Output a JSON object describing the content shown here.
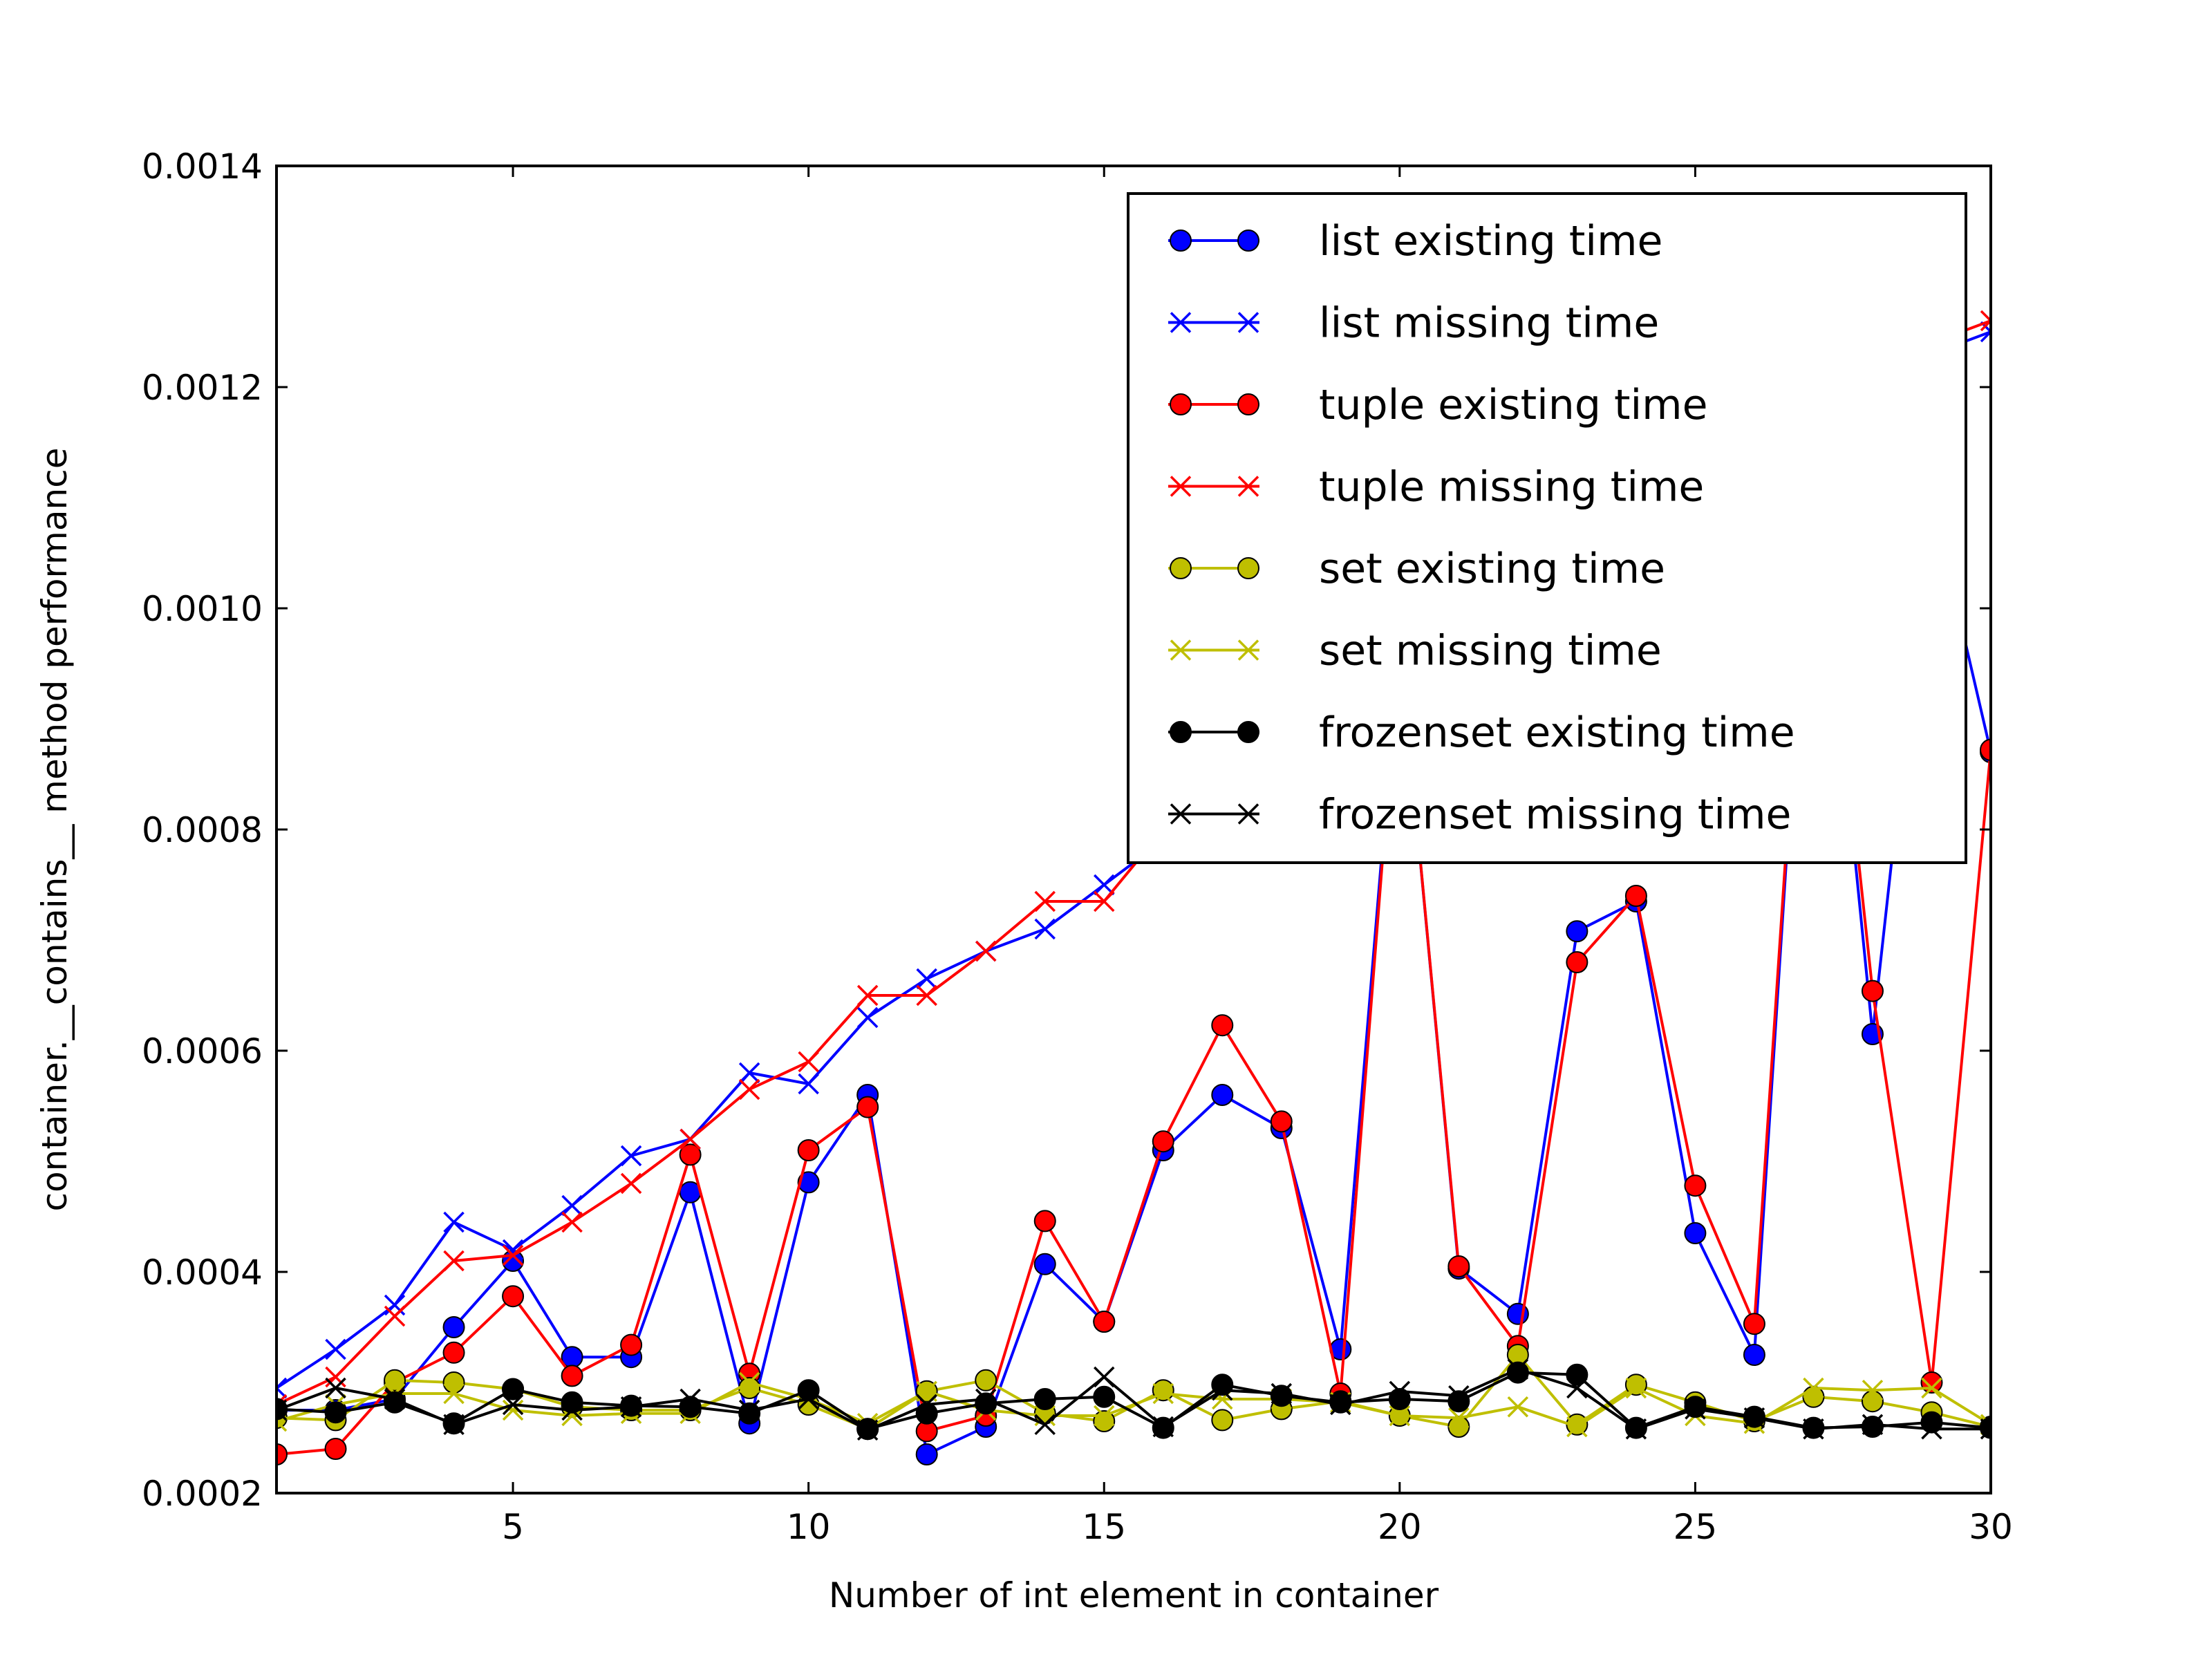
{
  "chart_data": {
    "type": "line",
    "xlabel": "Number of int element in container",
    "ylabel": "container.__contains__ method performance",
    "xlim": [
      1,
      30
    ],
    "ylim": [
      0.0002,
      0.0014
    ],
    "xticks": [
      5,
      10,
      15,
      20,
      25,
      30
    ],
    "xtick_labels": [
      "5",
      "10",
      "15",
      "20",
      "25",
      "30"
    ],
    "yticks": [
      0.0002,
      0.0004,
      0.0006,
      0.0008,
      0.001,
      0.0012,
      0.0014
    ],
    "ytick_labels": [
      "0.0002",
      "0.0004",
      "0.0006",
      "0.0008",
      "0.0010",
      "0.0012",
      "0.0014"
    ],
    "legend_position": "top-right",
    "grid": false,
    "x": [
      1,
      2,
      3,
      4,
      5,
      6,
      7,
      8,
      9,
      10,
      11,
      12,
      13,
      14,
      15,
      16,
      17,
      18,
      19,
      20,
      21,
      22,
      23,
      24,
      25,
      26,
      27,
      28,
      29,
      30
    ],
    "series": [
      {
        "name": "list existing time",
        "color": "#0000ff",
        "marker": "circle",
        "values": [
          0.000275,
          0.000275,
          0.000285,
          0.00035,
          0.00041,
          0.000323,
          0.000323,
          0.000472,
          0.000263,
          0.000481,
          0.00056,
          0.000235,
          0.00026,
          0.000407,
          0.000355,
          0.00051,
          0.00056,
          0.00053,
          0.00033,
          0.00097,
          0.000403,
          0.000362,
          0.000708,
          0.000735,
          0.000435,
          0.000325,
          0.00115,
          0.000615,
          0.0011,
          0.00087
        ]
      },
      {
        "name": "list missing time",
        "color": "#0000ff",
        "marker": "x",
        "values": [
          0.000295,
          0.00033,
          0.00037,
          0.000445,
          0.00042,
          0.00046,
          0.000505,
          0.00052,
          0.00058,
          0.00057,
          0.00063,
          0.000665,
          0.00069,
          0.00071,
          0.00075,
          0.00079,
          0.00086,
          0.00093,
          0.00098,
          0.00101,
          0.00104,
          0.00107,
          0.0011,
          0.00113,
          0.00116,
          0.00118,
          0.0012,
          0.00121,
          0.00123,
          0.00125
        ]
      },
      {
        "name": "tuple existing time",
        "color": "#ff0000",
        "marker": "circle",
        "values": [
          0.000235,
          0.00024,
          0.0003,
          0.000327,
          0.000378,
          0.000306,
          0.000334,
          0.000506,
          0.000308,
          0.00051,
          0.000549,
          0.000256,
          0.00027,
          0.000446,
          0.000355,
          0.000518,
          0.000623,
          0.000536,
          0.00029,
          0.00097,
          0.000405,
          0.000333,
          0.00068,
          0.00074,
          0.000478,
          0.000353,
          0.00115,
          0.000654,
          0.0003,
          0.000872
        ]
      },
      {
        "name": "tuple missing time",
        "color": "#ff0000",
        "marker": "x",
        "values": [
          0.00028,
          0.000305,
          0.00036,
          0.00041,
          0.000415,
          0.000445,
          0.00048,
          0.00052,
          0.000565,
          0.00059,
          0.00065,
          0.00065,
          0.00069,
          0.000735,
          0.000735,
          0.0008,
          0.00086,
          0.00092,
          0.00097,
          0.00101,
          0.00104,
          0.00107,
          0.00111,
          0.00113,
          0.00116,
          0.00118,
          0.0012,
          0.00122,
          0.00124,
          0.00126
        ]
      },
      {
        "name": "set existing time",
        "color": "#bfbf00",
        "marker": "circle",
        "values": [
          0.000268,
          0.000266,
          0.000302,
          0.0003,
          0.000294,
          0.000278,
          0.000275,
          0.000275,
          0.000295,
          0.00028,
          0.000258,
          0.000292,
          0.000302,
          0.000272,
          0.000265,
          0.000293,
          0.000266,
          0.000276,
          0.000283,
          0.00027,
          0.00026,
          0.000325,
          0.000262,
          0.000298,
          0.000282,
          0.000265,
          0.000287,
          0.000283,
          0.000273,
          0.00026
        ]
      },
      {
        "name": "set missing time",
        "color": "#bfbf00",
        "marker": "x",
        "values": [
          0.000265,
          0.00028,
          0.00029,
          0.00029,
          0.000275,
          0.00027,
          0.000272,
          0.000272,
          0.0003,
          0.000285,
          0.000263,
          0.000292,
          0.000275,
          0.00027,
          0.00027,
          0.00029,
          0.000285,
          0.000285,
          0.000282,
          0.00027,
          0.000268,
          0.000278,
          0.00026,
          0.000295,
          0.00027,
          0.000263,
          0.000295,
          0.000293,
          0.000295,
          0.000262
        ]
      },
      {
        "name": "frozenset existing time",
        "color": "#000000",
        "marker": "circle",
        "values": [
          0.000276,
          0.000273,
          0.000282,
          0.000263,
          0.000294,
          0.000282,
          0.000279,
          0.000278,
          0.000272,
          0.000293,
          0.000258,
          0.000272,
          0.000281,
          0.000285,
          0.000287,
          0.000259,
          0.000298,
          0.000288,
          0.000282,
          0.000285,
          0.000283,
          0.000309,
          0.000307,
          0.000259,
          0.000278,
          0.000269,
          0.000259,
          0.00026,
          0.000264,
          0.000259
        ]
      },
      {
        "name": "frozenset missing time",
        "color": "#000000",
        "marker": "x",
        "values": [
          0.000275,
          0.000295,
          0.000285,
          0.000262,
          0.00028,
          0.000275,
          0.000278,
          0.000285,
          0.000275,
          0.000285,
          0.000257,
          0.00028,
          0.000285,
          0.000262,
          0.000305,
          0.00026,
          0.000293,
          0.00029,
          0.00028,
          0.000292,
          0.000288,
          0.000312,
          0.000295,
          0.000258,
          0.000276,
          0.000268,
          0.000258,
          0.000262,
          0.000258,
          0.000258
        ]
      }
    ]
  }
}
